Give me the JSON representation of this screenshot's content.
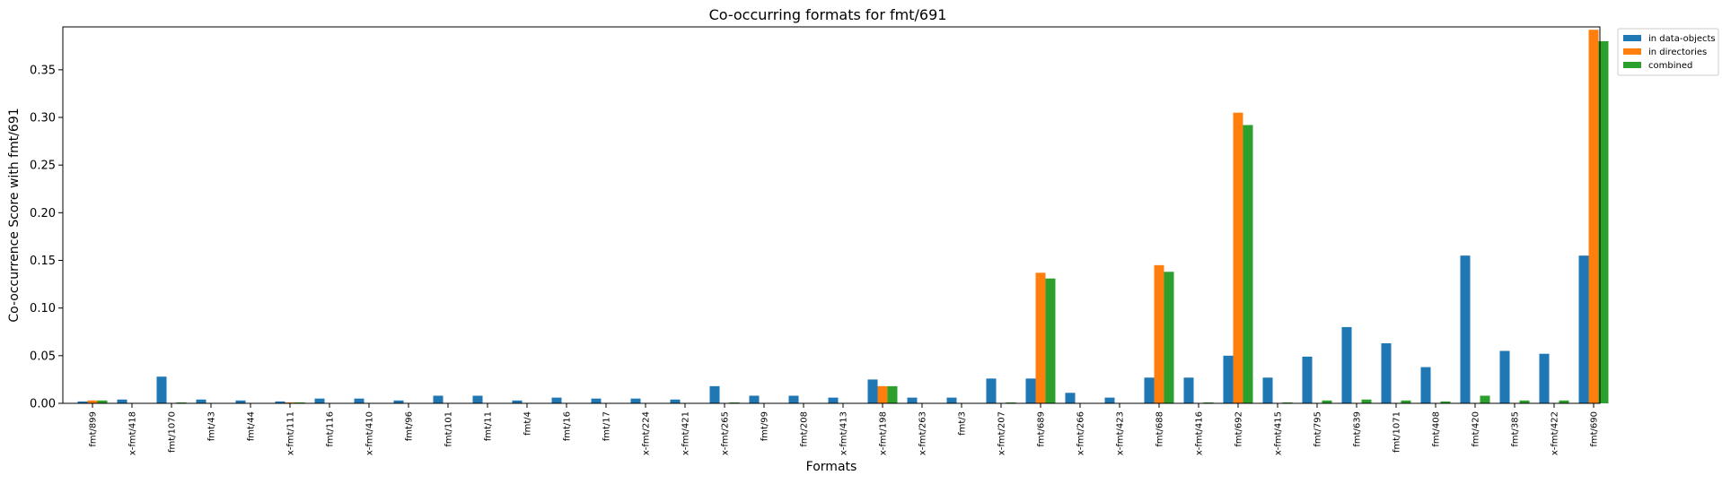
{
  "chart_data": {
    "type": "bar",
    "title": "Co-occurring formats for fmt/691",
    "xlabel": "Formats",
    "ylabel": "Co-occurrence Score with fmt/691",
    "ylim": [
      0,
      0.395
    ],
    "yticks": [
      "0.00",
      "0.05",
      "0.10",
      "0.15",
      "0.20",
      "0.25",
      "0.30",
      "0.35"
    ],
    "ytick_values": [
      0,
      0.05,
      0.1,
      0.15,
      0.2,
      0.25,
      0.3,
      0.35
    ],
    "grid": false,
    "legend_position": "top-right outside",
    "categories": [
      "fmt/899",
      "x-fmt/418",
      "fmt/1070",
      "fmt/43",
      "fmt/44",
      "x-fmt/111",
      "fmt/116",
      "x-fmt/410",
      "fmt/96",
      "fmt/101",
      "fmt/11",
      "fmt/4",
      "fmt/16",
      "fmt/17",
      "x-fmt/224",
      "x-fmt/421",
      "x-fmt/265",
      "fmt/99",
      "fmt/208",
      "x-fmt/413",
      "x-fmt/198",
      "x-fmt/263",
      "fmt/3",
      "x-fmt/207",
      "fmt/689",
      "x-fmt/266",
      "x-fmt/423",
      "fmt/688",
      "x-fmt/416",
      "fmt/692",
      "x-fmt/415",
      "fmt/795",
      "fmt/639",
      "fmt/1071",
      "fmt/408",
      "fmt/420",
      "fmt/385",
      "x-fmt/422",
      "fmt/690"
    ],
    "series": [
      {
        "name": "in data-objects",
        "color": "#1f77b4",
        "values": [
          0.002,
          0.004,
          0.028,
          0.004,
          0.003,
          0.002,
          0.005,
          0.005,
          0.003,
          0.008,
          0.008,
          0.003,
          0.006,
          0.005,
          0.005,
          0.004,
          0.018,
          0.008,
          0.008,
          0.006,
          0.025,
          0.006,
          0.006,
          0.026,
          0.026,
          0.011,
          0.006,
          0.027,
          0.027,
          0.05,
          0.027,
          0.049,
          0.08,
          0.063,
          0.038,
          0.155,
          0.055,
          0.052,
          0.155
        ]
      },
      {
        "name": "in directories",
        "color": "#ff7f0e",
        "values": [
          0.003,
          0,
          0,
          0,
          0,
          0.001,
          0,
          0,
          0,
          0,
          0,
          0,
          0,
          0,
          0,
          0,
          0,
          0,
          0,
          0,
          0.018,
          0,
          0,
          0,
          0.137,
          0,
          0,
          0.145,
          0,
          0.305,
          0,
          0,
          0,
          0,
          0,
          0,
          0,
          0,
          0.392
        ]
      },
      {
        "name": "combined",
        "color": "#2ca02c",
        "values": [
          0.003,
          0,
          0.001,
          0,
          0,
          0.001,
          0,
          0,
          0,
          0,
          0,
          0,
          0,
          0,
          0,
          0,
          0.001,
          0,
          0,
          0,
          0.018,
          0,
          0,
          0.001,
          0.131,
          0,
          0,
          0.138,
          0.001,
          0.292,
          0.001,
          0.003,
          0.004,
          0.003,
          0.002,
          0.008,
          0.003,
          0.003,
          0.38
        ]
      }
    ]
  }
}
